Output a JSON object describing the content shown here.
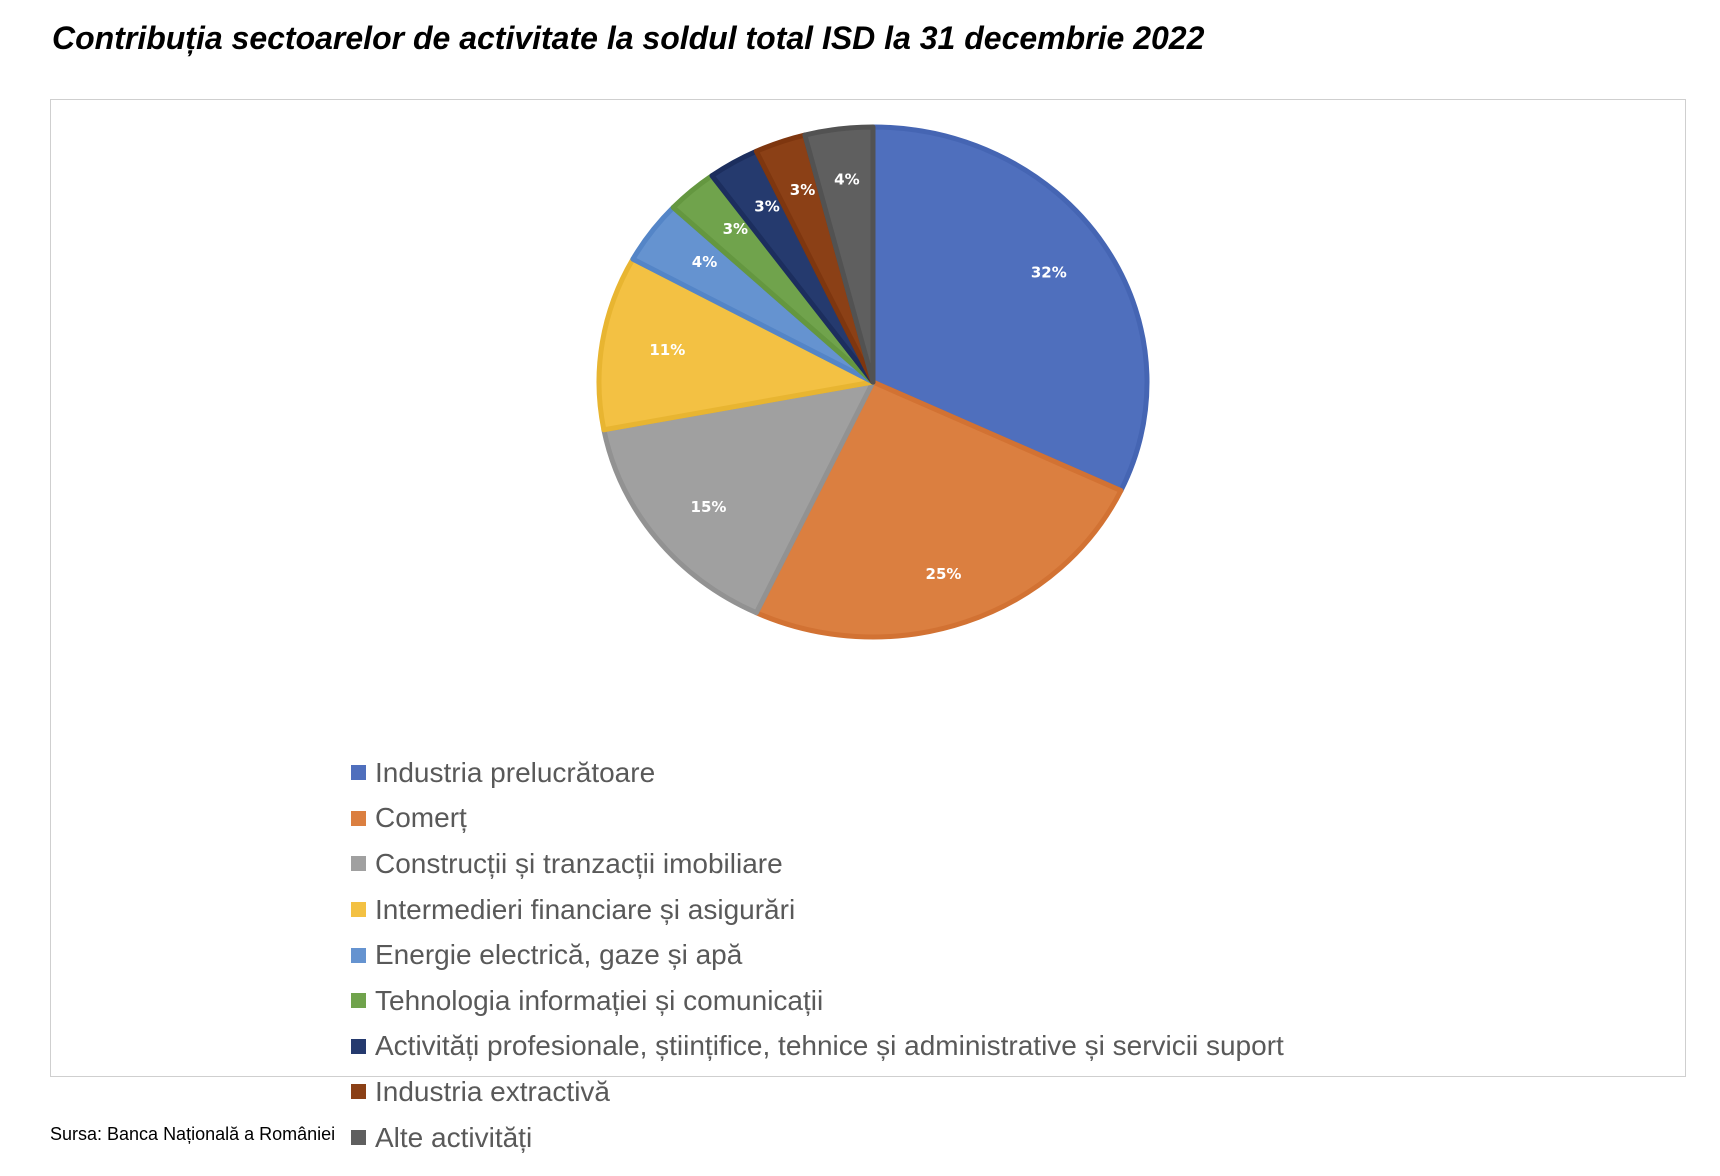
{
  "title": "Contribuția sectoarelor de activitate la soldul total ISD la 31 decembrie 2022",
  "source": "Sursa: Banca Națională a României",
  "chart_data": {
    "type": "pie",
    "categories": [
      "Industria prelucrătoare",
      "Comerț",
      "Construcții și tranzacții imobiliare",
      "Intermedieri financiare și asigurări",
      "Energie electrică, gaze și apă",
      "Tehnologia informației și comunicații",
      "Activități profesionale, științifice, tehnice și administrative și servicii suport",
      "Industria extractivă",
      "Alte activități"
    ],
    "values": [
      32,
      25,
      15,
      11,
      4,
      3,
      3,
      3,
      4
    ],
    "data_labels": [
      "32%",
      "25%",
      "15%",
      "11%",
      "4%",
      "3%",
      "3%",
      "3%",
      "4%"
    ],
    "colors": [
      "#4f6fbd",
      "#db7f40",
      "#a0a0a0",
      "#f3c143",
      "#6593d0",
      "#70a34c",
      "#253a6e",
      "#8b4016",
      "#5f5f5f"
    ],
    "edge_colors": [
      "#4565b3",
      "#d27233",
      "#929292",
      "#e8b531",
      "#5485c7",
      "#649740",
      "#1c2e5e",
      "#7e360f",
      "#525252"
    ],
    "legend_position": "bottom",
    "start_angle": "12 o'clock",
    "direction": "clockwise"
  }
}
